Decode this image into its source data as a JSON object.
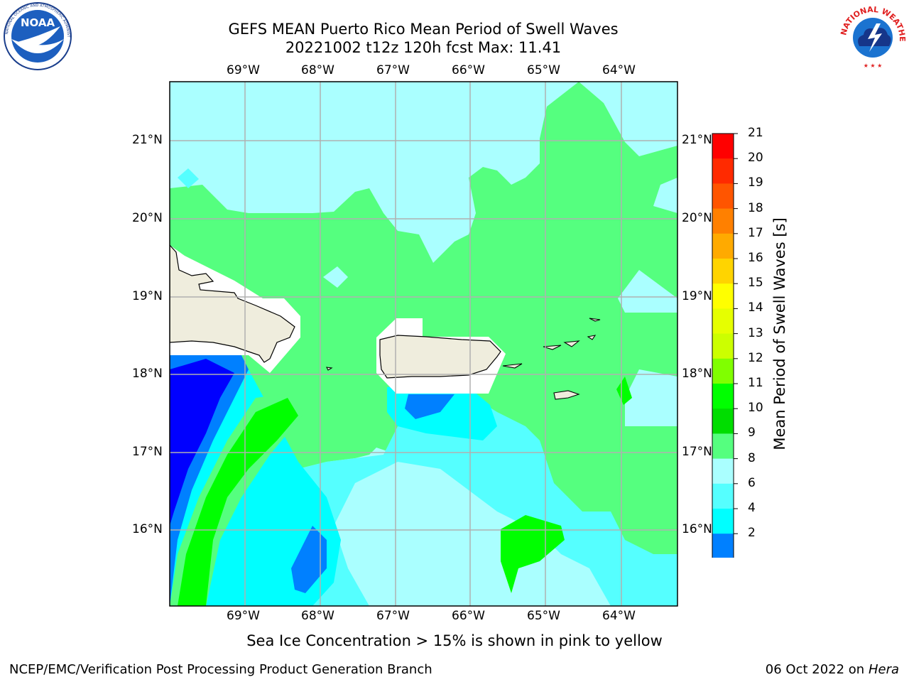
{
  "title": {
    "line1": "GEFS MEAN Puerto Rico Mean Period of Swell Waves",
    "line2": "20221002 t12z 120h fcst   Max: 11.41"
  },
  "logos": {
    "left": {
      "name": "noaa-logo",
      "text": "NOAA",
      "ring_text": "NATIONAL OCEANIC AND ATMOSPHERIC ADMINISTRATION  U.S. DEPARTMENT OF COMMERCE"
    },
    "right": {
      "name": "nws-logo",
      "ring_text": "NATIONAL WEATHER SERVICE"
    }
  },
  "map": {
    "lon_labels": [
      "69°W",
      "68°W",
      "67°W",
      "66°W",
      "65°W",
      "64°W"
    ],
    "lat_labels": [
      "21°N",
      "20°N",
      "19°N",
      "18°N",
      "17°N",
      "16°N"
    ],
    "colors": {
      "land": "#efeddd",
      "ocean_2_4": "#0000ff",
      "ocean_4_6": "#0080ff",
      "ocean_6_8": "#00ffff",
      "ocean_8_9": "#55ffff",
      "ocean_9_10": "#aaffff",
      "ocean_10_11": "#55ff7f",
      "ocean_11_12": "#00ff00",
      "grid": "#b0b0b0"
    }
  },
  "colorbar": {
    "title": "Mean Period of Swell Waves [s]",
    "labels": [
      "21",
      "20",
      "19",
      "18",
      "17",
      "16",
      "15",
      "14",
      "13",
      "12",
      "11",
      "10",
      "9",
      "8",
      "6",
      "4",
      "2"
    ],
    "colors": [
      "#ff0000",
      "#ff2a00",
      "#ff5500",
      "#ff8000",
      "#ffaa00",
      "#ffd400",
      "#ffff00",
      "#e6ff00",
      "#ccff00",
      "#80ff00",
      "#00ff00",
      "#00dd00",
      "#55ff7f",
      "#aaffff",
      "#55ffff",
      "#00ffff",
      "#0080ff"
    ],
    "under_color": "#0000ff"
  },
  "note": "Sea Ice Concentration > 15% is shown in pink to yellow",
  "footer": {
    "left": "NCEP/EMC/Verification Post Processing Product Generation Branch",
    "right_date": "06 Oct 2022 on ",
    "right_machine": "Hera"
  }
}
